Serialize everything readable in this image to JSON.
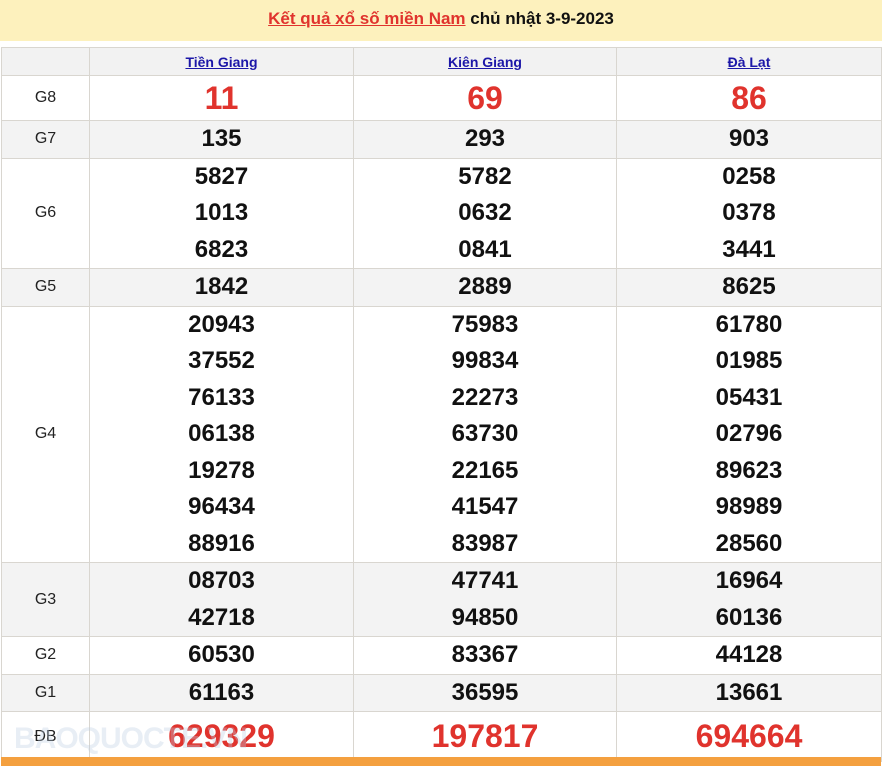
{
  "title": {
    "link": "Kết quả xổ số miền Nam",
    "rest": " chủ nhật 3-9-2023"
  },
  "provinces": [
    "Tiền Giang",
    "Kiên Giang",
    "Đà Lạt"
  ],
  "rows": [
    {
      "label": "G8",
      "values": [
        [
          "11"
        ],
        [
          "69"
        ],
        [
          "86"
        ]
      ]
    },
    {
      "label": "G7",
      "values": [
        [
          "135"
        ],
        [
          "293"
        ],
        [
          "903"
        ]
      ]
    },
    {
      "label": "G6",
      "values": [
        [
          "5827",
          "1013",
          "6823"
        ],
        [
          "5782",
          "0632",
          "0841"
        ],
        [
          "0258",
          "0378",
          "3441"
        ]
      ]
    },
    {
      "label": "G5",
      "values": [
        [
          "1842"
        ],
        [
          "2889"
        ],
        [
          "8625"
        ]
      ]
    },
    {
      "label": "G4",
      "values": [
        [
          "20943",
          "37552",
          "76133",
          "06138",
          "19278",
          "96434",
          "88916"
        ],
        [
          "75983",
          "99834",
          "22273",
          "63730",
          "22165",
          "41547",
          "83987"
        ],
        [
          "61780",
          "01985",
          "05431",
          "02796",
          "89623",
          "98989",
          "28560"
        ]
      ]
    },
    {
      "label": "G3",
      "values": [
        [
          "08703",
          "42718"
        ],
        [
          "47741",
          "94850"
        ],
        [
          "16964",
          "60136"
        ]
      ]
    },
    {
      "label": "G2",
      "values": [
        [
          "60530"
        ],
        [
          "83367"
        ],
        [
          "44128"
        ]
      ]
    },
    {
      "label": "G1",
      "values": [
        [
          "61163"
        ],
        [
          "36595"
        ],
        [
          "13661"
        ]
      ]
    },
    {
      "label": "ĐB",
      "values": [
        [
          "629329"
        ],
        [
          "197817"
        ],
        [
          "694664"
        ]
      ]
    }
  ],
  "watermark": "BAOQUOCTE.VN",
  "colors": {
    "accent_red": "#e0332d",
    "link_blue": "#1c17a8",
    "title_bg": "#fdf1bd",
    "footer_bar": "#f4a03f"
  }
}
